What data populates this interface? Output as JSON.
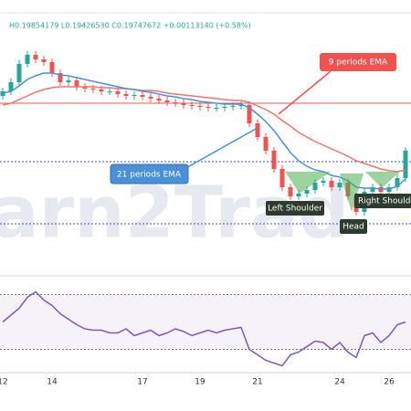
{
  "chart_data": [
    {
      "type": "candlestick",
      "header": "H0.19854179  L0.19426530  C0.19747672  +0.00113140 (+0.58%)",
      "watermark": "arn2Trad",
      "categories": [
        "12",
        null,
        null,
        null,
        null,
        null,
        "14",
        null,
        null,
        null,
        null,
        null,
        null,
        null,
        null,
        null,
        null,
        "17",
        null,
        null,
        null,
        null,
        null,
        null,
        "19",
        null,
        null,
        null,
        null,
        null,
        null,
        "21",
        null,
        null,
        null,
        null,
        null,
        null,
        null,
        null,
        null,
        "24",
        null,
        null,
        null,
        null,
        null,
        "26",
        null,
        null
      ],
      "open": [
        0.1845,
        0.185,
        0.186,
        0.188,
        0.189,
        0.1885,
        0.1882,
        0.187,
        0.186,
        0.1862,
        0.1855,
        0.1853,
        0.1852,
        0.185,
        0.185,
        0.1847,
        0.1845,
        0.1846,
        0.1844,
        0.1842,
        0.184,
        0.1838,
        0.1837,
        0.1835,
        0.1834,
        0.1833,
        0.1832,
        0.1832,
        0.1833,
        0.1834,
        0.1835,
        0.1815,
        0.18,
        0.1785,
        0.1765,
        0.1745,
        0.1735,
        0.1738,
        0.1742,
        0.175,
        0.1752,
        0.1745,
        0.175,
        0.1735,
        0.1718,
        0.174,
        0.1745,
        0.174,
        0.1745,
        0.1755
      ],
      "high": [
        0.1854,
        0.1864,
        0.1884,
        0.1894,
        0.1894,
        0.1889,
        0.1886,
        0.1874,
        0.1866,
        0.1866,
        0.1859,
        0.1857,
        0.1856,
        0.1854,
        0.1854,
        0.1851,
        0.185,
        0.185,
        0.1848,
        0.1846,
        0.1844,
        0.1842,
        0.1841,
        0.1839,
        0.1838,
        0.1837,
        0.1836,
        0.1837,
        0.1838,
        0.1839,
        0.1839,
        0.1819,
        0.1804,
        0.1789,
        0.1769,
        0.1749,
        0.1742,
        0.1746,
        0.1754,
        0.1756,
        0.1756,
        0.1754,
        0.1754,
        0.1739,
        0.1744,
        0.1749,
        0.1749,
        0.1749,
        0.1759,
        0.1789
      ],
      "low": [
        0.1841,
        0.1846,
        0.1856,
        0.1876,
        0.1881,
        0.1878,
        0.1866,
        0.1856,
        0.1856,
        0.1851,
        0.1849,
        0.1848,
        0.1846,
        0.1846,
        0.1843,
        0.1841,
        0.1841,
        0.184,
        0.1838,
        0.1836,
        0.1834,
        0.1833,
        0.1831,
        0.183,
        0.1829,
        0.1828,
        0.1828,
        0.1828,
        0.1829,
        0.183,
        0.1811,
        0.1796,
        0.1781,
        0.1761,
        0.1741,
        0.1731,
        0.1731,
        0.1734,
        0.1738,
        0.1746,
        0.1741,
        0.1741,
        0.1731,
        0.1714,
        0.1714,
        0.1736,
        0.1736,
        0.1736,
        0.1741,
        0.1751
      ],
      "close": [
        0.185,
        0.186,
        0.188,
        0.189,
        0.1885,
        0.1882,
        0.187,
        0.186,
        0.1862,
        0.1855,
        0.1853,
        0.1852,
        0.185,
        0.185,
        0.1847,
        0.1845,
        0.1846,
        0.1844,
        0.1842,
        0.184,
        0.1838,
        0.1837,
        0.1835,
        0.1834,
        0.1833,
        0.1832,
        0.1832,
        0.1833,
        0.1834,
        0.1835,
        0.1815,
        0.18,
        0.1785,
        0.1765,
        0.1745,
        0.1735,
        0.1738,
        0.1742,
        0.175,
        0.1752,
        0.1745,
        0.175,
        0.1735,
        0.1718,
        0.174,
        0.1745,
        0.174,
        0.1745,
        0.1755,
        0.1785
      ],
      "up_color": "#26a69a",
      "down_color": "#ef5350",
      "series": [
        {
          "name": "9 periods EMA",
          "color": "#f0766a",
          "values": [
            0.1835,
            0.1837,
            0.1841,
            0.1845,
            0.1849,
            0.1852,
            0.1854,
            0.1855,
            0.1855,
            0.1855,
            0.1855,
            0.1855,
            0.1854,
            0.1854,
            0.1853,
            0.1853,
            0.1852,
            0.1851,
            0.1851,
            0.185,
            0.1848,
            0.1847,
            0.1846,
            0.1845,
            0.1844,
            0.1843,
            0.1842,
            0.1841,
            0.184,
            0.184,
            0.1838,
            0.1834,
            0.183,
            0.1825,
            0.1818,
            0.1812,
            0.1805,
            0.18,
            0.1795,
            0.1791,
            0.1787,
            0.1783,
            0.1779,
            0.1774,
            0.1771,
            0.1768,
            0.1765,
            0.1763,
            0.1762,
            0.1764
          ]
        },
        {
          "name": "21 periods EMA",
          "color": "#4a90d9",
          "values": [
            0.1848,
            0.185,
            0.1856,
            0.1863,
            0.1867,
            0.187,
            0.187,
            0.1868,
            0.1867,
            0.1865,
            0.1863,
            0.1861,
            0.1859,
            0.1857,
            0.1855,
            0.1853,
            0.1852,
            0.185,
            0.1849,
            0.1847,
            0.1845,
            0.1844,
            0.1842,
            0.1841,
            0.1839,
            0.1838,
            0.1837,
            0.1836,
            0.1836,
            0.1836,
            0.1832,
            0.1825,
            0.1817,
            0.1807,
            0.1795,
            0.1783,
            0.1774,
            0.1768,
            0.1764,
            0.1762,
            0.1758,
            0.1756,
            0.1752,
            0.1745,
            0.1744,
            0.1744,
            0.1743,
            0.1743,
            0.1746,
            0.1754
          ]
        }
      ],
      "levels": [
        {
          "value": 0.1837,
          "color": "#ef5350",
          "dashed": false
        },
        {
          "value": 0.1773,
          "color": "#3f51b5",
          "dashed": true
        },
        {
          "value": 0.1705,
          "color": "#3f51b5",
          "dashed": true
        }
      ],
      "annotations": [
        "Left Shoulder",
        "Head",
        "Right Shoulde"
      ],
      "ylim": [
        0.165,
        0.195
      ]
    },
    {
      "type": "line",
      "series": [
        {
          "color": "#7e57c2",
          "values": [
            50,
            55,
            60,
            68,
            72,
            66,
            62,
            56,
            52,
            48,
            45,
            44,
            44,
            42,
            42,
            45,
            40,
            42,
            44,
            40,
            42,
            45,
            43,
            40,
            42,
            44,
            42,
            44,
            45,
            46,
            30,
            26,
            22,
            20,
            18,
            26,
            28,
            32,
            36,
            35,
            30,
            35,
            28,
            24,
            40,
            42,
            35,
            40,
            48,
            50
          ]
        }
      ],
      "bands": [
        70,
        30
      ],
      "ylim": [
        15,
        85
      ]
    }
  ]
}
